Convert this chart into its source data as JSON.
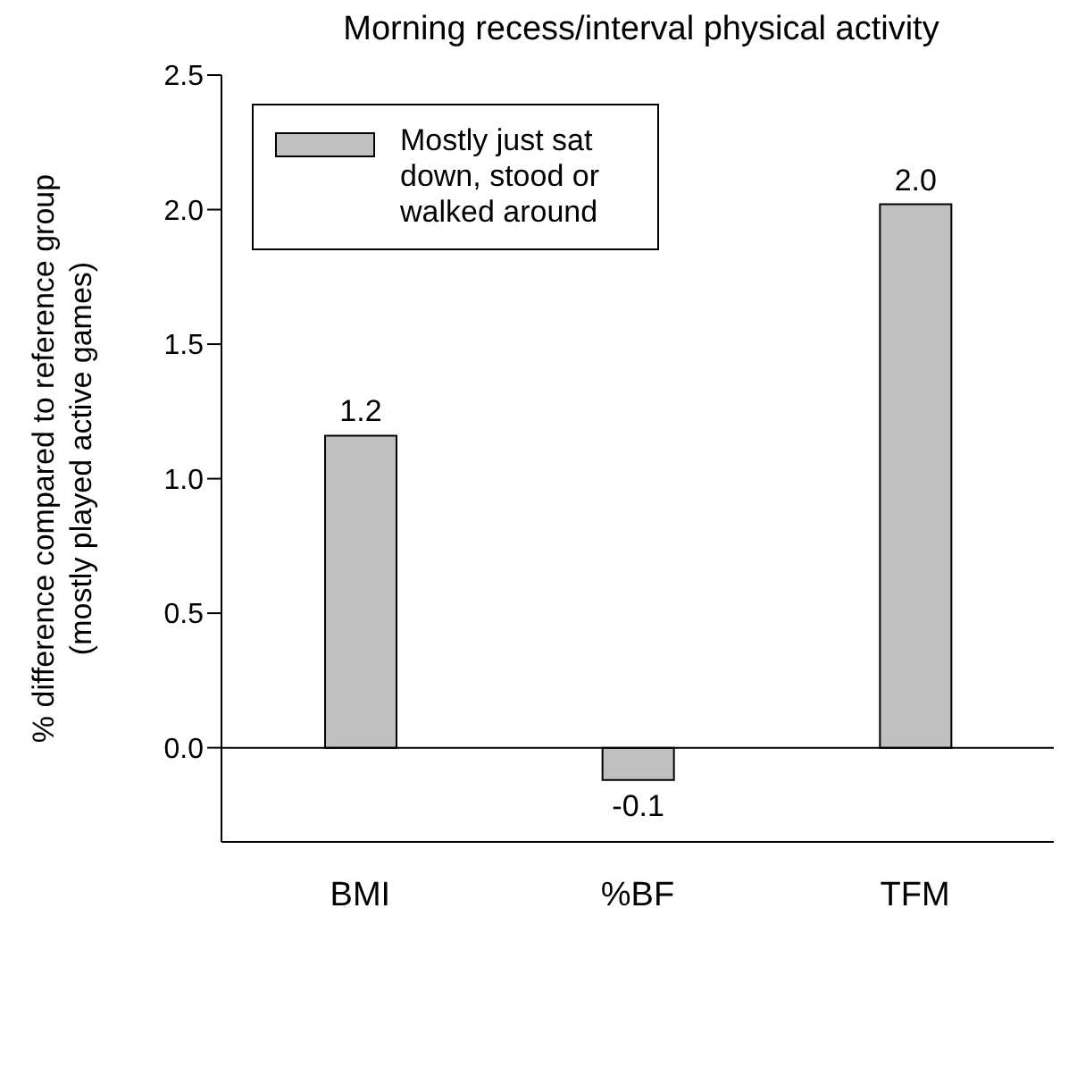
{
  "chart_data": {
    "type": "bar",
    "title": "Morning recess/interval physical activity",
    "ylabel": "% difference compared to reference group\n(mostly played active games)",
    "categories": [
      "BMI",
      "%BF",
      "TFM"
    ],
    "series": [
      {
        "name": "Mostly just sat down, stood or walked around",
        "color": "#c0c0c0",
        "values": [
          1.16,
          -0.12,
          2.02
        ],
        "value_labels": [
          "1.2",
          "-0.1",
          "2.0"
        ]
      }
    ],
    "ylim": [
      -0.35,
      2.5
    ],
    "yticks": [
      {
        "value": 0,
        "label": "0.0"
      },
      0.5,
      {
        "value": 1,
        "label": "1.0"
      },
      1.5,
      {
        "value": 2,
        "label": "2.0"
      },
      2.5
    ],
    "ref_lines": [
      {
        "axis": "y",
        "value": 0
      }
    ],
    "grid": false,
    "legend": "top left"
  }
}
